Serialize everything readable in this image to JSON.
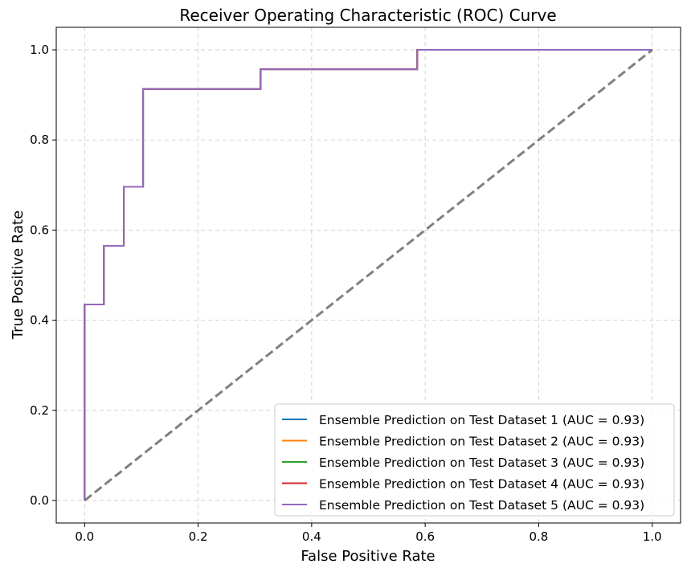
{
  "chart_data": {
    "type": "line",
    "title": "Receiver Operating Characteristic (ROC) Curve",
    "xlabel": "False Positive Rate",
    "ylabel": "True Positive Rate",
    "xlim": [
      -0.05,
      1.05
    ],
    "ylim": [
      -0.05,
      1.05
    ],
    "xticks": [
      0.0,
      0.2,
      0.4,
      0.6,
      0.8,
      1.0
    ],
    "yticks": [
      0.0,
      0.2,
      0.4,
      0.6,
      0.8,
      1.0
    ],
    "xtick_labels": [
      "0.0",
      "0.2",
      "0.4",
      "0.6",
      "0.8",
      "1.0"
    ],
    "ytick_labels": [
      "0.0",
      "0.2",
      "0.4",
      "0.6",
      "0.8",
      "1.0"
    ],
    "grid": true,
    "legend_position": "lower-right",
    "series": [
      {
        "name": "Ensemble Prediction on Test Dataset 1 (AUC = 0.93)",
        "color": "#1f77b4",
        "x": [
          0,
          0,
          0.034,
          0.034,
          0.069,
          0.069,
          0.103,
          0.103,
          0.31,
          0.31,
          0.586,
          0.586,
          1.0
        ],
        "y": [
          0,
          0.435,
          0.435,
          0.565,
          0.565,
          0.696,
          0.696,
          0.913,
          0.913,
          0.957,
          0.957,
          1.0,
          1.0
        ]
      },
      {
        "name": "Ensemble Prediction on Test Dataset 2 (AUC = 0.93)",
        "color": "#ff7f0e",
        "x": [
          0,
          0,
          0.034,
          0.034,
          0.069,
          0.069,
          0.103,
          0.103,
          0.31,
          0.31,
          0.586,
          0.586,
          1.0
        ],
        "y": [
          0,
          0.435,
          0.435,
          0.565,
          0.565,
          0.696,
          0.696,
          0.913,
          0.913,
          0.957,
          0.957,
          1.0,
          1.0
        ]
      },
      {
        "name": "Ensemble Prediction on Test Dataset 3 (AUC = 0.93)",
        "color": "#2ca02c",
        "x": [
          0,
          0,
          0.034,
          0.034,
          0.069,
          0.069,
          0.103,
          0.103,
          0.31,
          0.31,
          0.586,
          0.586,
          1.0
        ],
        "y": [
          0,
          0.435,
          0.435,
          0.565,
          0.565,
          0.696,
          0.696,
          0.913,
          0.913,
          0.957,
          0.957,
          1.0,
          1.0
        ]
      },
      {
        "name": "Ensemble Prediction on Test Dataset 4 (AUC = 0.93)",
        "color": "#d62728",
        "x": [
          0,
          0,
          0.034,
          0.034,
          0.069,
          0.069,
          0.103,
          0.103,
          0.31,
          0.31,
          0.586,
          0.586,
          1.0
        ],
        "y": [
          0,
          0.435,
          0.435,
          0.565,
          0.565,
          0.696,
          0.696,
          0.913,
          0.913,
          0.957,
          0.957,
          1.0,
          1.0
        ]
      },
      {
        "name": "Ensemble Prediction on Test Dataset 5 (AUC = 0.93)",
        "color": "#9467bd",
        "x": [
          0,
          0,
          0.034,
          0.034,
          0.069,
          0.069,
          0.103,
          0.103,
          0.31,
          0.31,
          0.586,
          0.586,
          1.0
        ],
        "y": [
          0,
          0.435,
          0.435,
          0.565,
          0.565,
          0.696,
          0.696,
          0.913,
          0.913,
          0.957,
          0.957,
          1.0,
          1.0
        ]
      }
    ],
    "reference_line": {
      "x": [
        0,
        1
      ],
      "y": [
        0,
        1
      ],
      "color": "#808080",
      "style": "dashed"
    }
  }
}
